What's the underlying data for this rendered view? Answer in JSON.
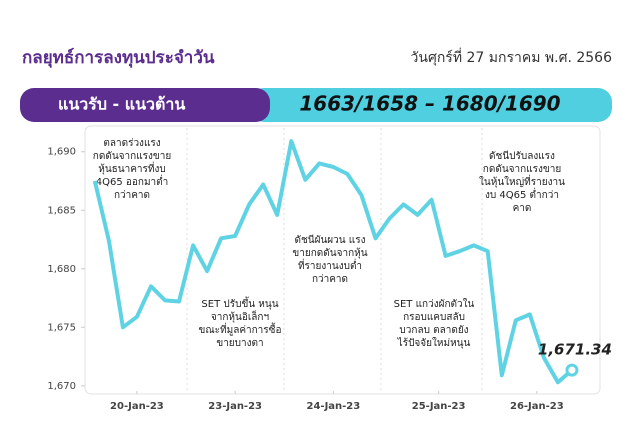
{
  "header": {
    "title": "กลยุทธ์การลงทุนประจำวัน",
    "date": "วันศุกร์ที่ 27 มกราคม พ.ศ. 2566"
  },
  "banner": {
    "label": "แนวรับ - แนวต้าน",
    "levels": "1663/1658 – 1680/1690"
  },
  "chart_data": {
    "type": "line",
    "xlim": [
      -0.7,
      36
    ],
    "xticks": [
      {
        "value": 3,
        "label": "20-Jan-23"
      },
      {
        "value": 10,
        "label": "23-Jan-23"
      },
      {
        "value": 17,
        "label": "24-Jan-23"
      },
      {
        "value": 24.5,
        "label": "25-Jan-23"
      },
      {
        "value": 31.5,
        "label": "26-Jan-23"
      }
    ],
    "ylim": [
      1669.3,
      1692.2
    ],
    "yticks": [
      {
        "value": 1670,
        "label": "1,670"
      },
      {
        "value": 1675,
        "label": "1,675"
      },
      {
        "value": 1680,
        "label": "1,680"
      },
      {
        "value": 1685,
        "label": "1,685"
      },
      {
        "value": 1690,
        "label": "1,690"
      }
    ],
    "series": [
      {
        "color": "#5fd3e3",
        "values": [
          1687.5,
          1682.4,
          1675.0,
          1675.9,
          1678.5,
          1677.3,
          1677.2,
          1682.0,
          1679.8,
          1682.6,
          1682.8,
          1685.5,
          1687.2,
          1684.6,
          1690.9,
          1687.6,
          1689.0,
          1688.7,
          1688.1,
          1686.3,
          1682.6,
          1684.3,
          1685.5,
          1684.6,
          1685.9,
          1681.1,
          1681.5,
          1682.0,
          1681.5,
          1670.9,
          1675.6,
          1676.1,
          1672.4,
          1670.3,
          1671.34
        ],
        "value_labels": [
          null,
          null,
          null,
          null,
          null,
          null,
          null,
          null,
          null,
          null,
          null,
          null,
          null,
          null,
          null,
          null,
          null,
          null,
          null,
          null,
          null,
          null,
          null,
          null,
          null,
          null,
          null,
          null,
          null,
          null,
          null,
          null,
          null,
          null,
          "1,671.34"
        ]
      }
    ],
    "annotations": [
      [
        "ตลาดร่วงแรง",
        "กดดันจากแรงขาย",
        "หุ้นธนาคารที่งบ",
        "4Q65 ออกมาต่ำ",
        "กว่าคาด"
      ],
      [
        "SET ปรับขึ้น หนุน",
        "จากหุ้นอิเล็กฯ",
        "ขณะที่มูลค่าการซื้อ",
        "ขายบางตา"
      ],
      [
        "ดัชนีผันผวน แรง",
        "ขายกดดันจากหุ้น",
        "ที่รายงานงบต่ำ",
        "กว่าคาด"
      ],
      [
        "SET แกว่งผักตัวใน",
        "กรอบแคบสลับ",
        "บวกลบ ตลาดยัง",
        "ไร้ปัจจัยใหม่หนุน"
      ],
      [
        "ดัชนีปรับลงแรง",
        "กดดันจากแรงขาย",
        "ในหุ้นใหญ่ที่รายงาน",
        "งบ 4Q65 ต่ำกว่า",
        "คาด"
      ]
    ]
  }
}
